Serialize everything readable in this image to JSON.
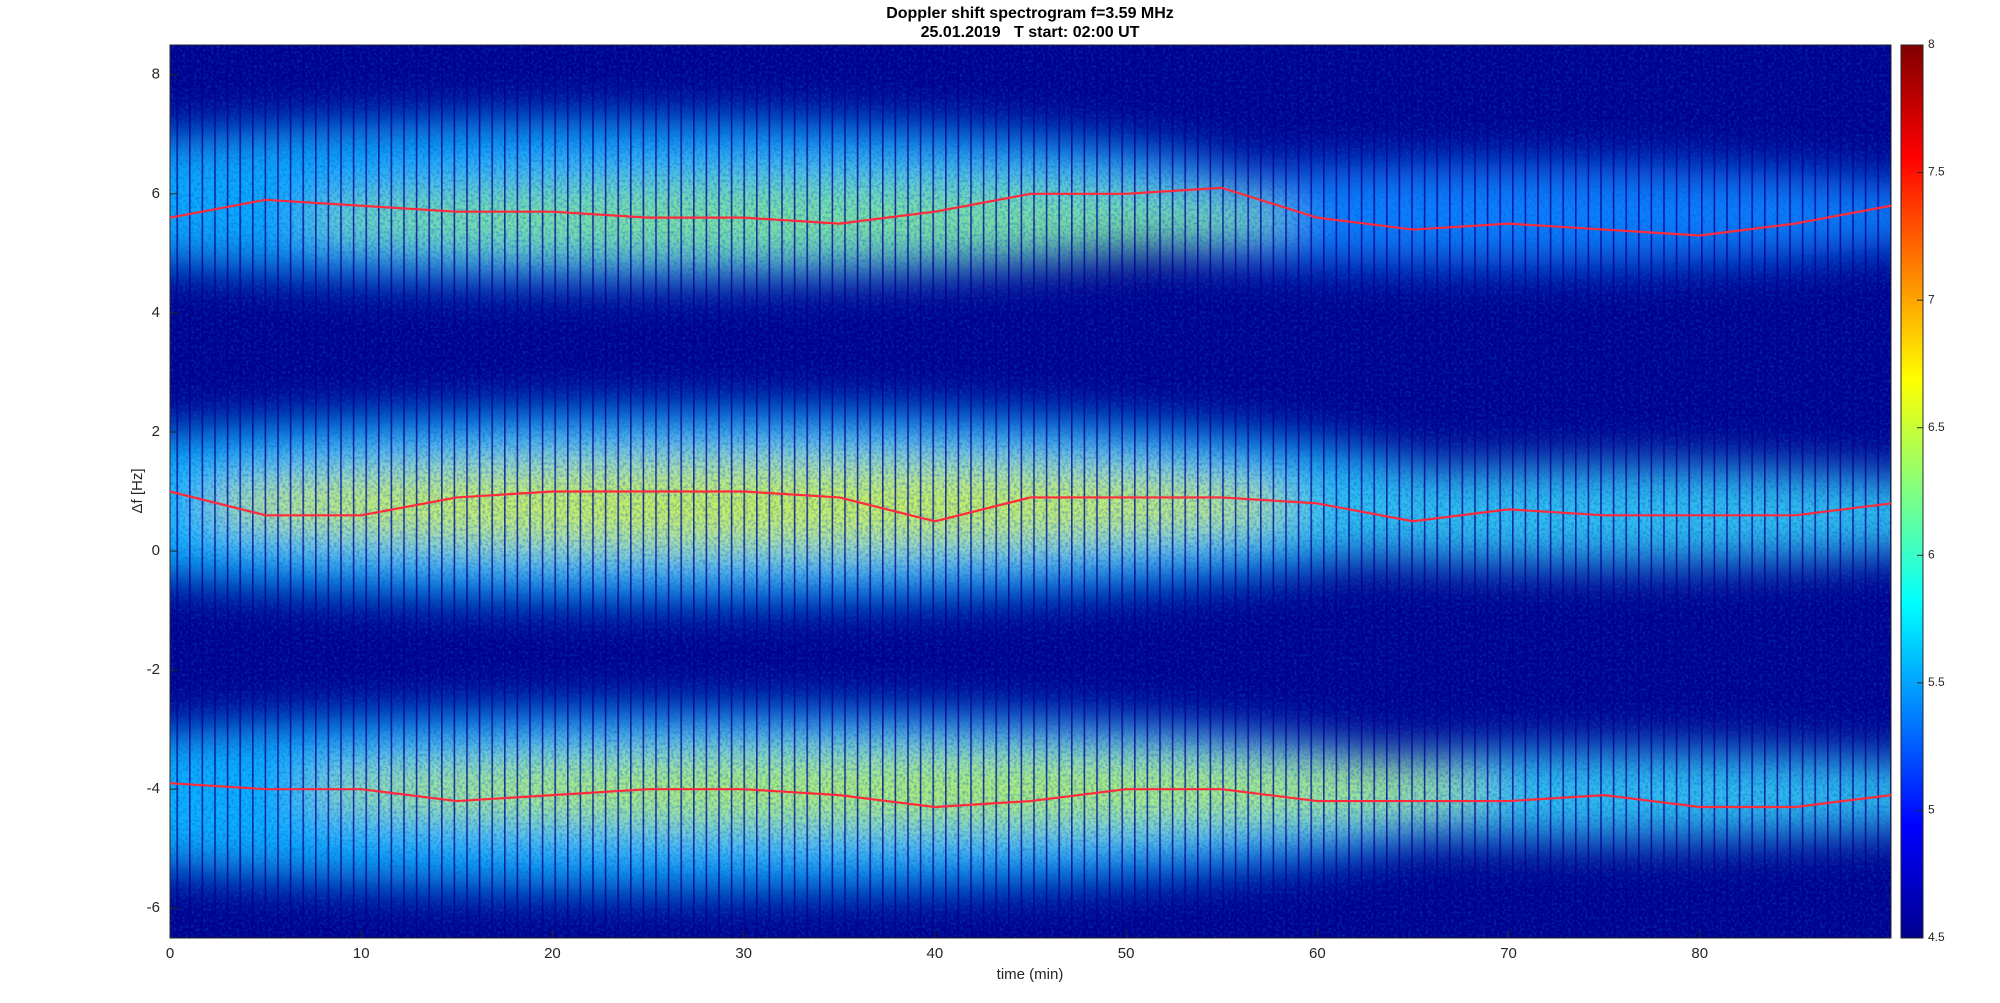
{
  "chart_data": {
    "type": "line",
    "title": "Doppler shift spectrogram f=3.59 MHz",
    "subtitle": "25.01.2019   T start: 02:00 UT",
    "x_label": "time (min)",
    "y_label": "Δf [Hz]",
    "x": [
      0,
      5,
      10,
      15,
      20,
      25,
      30,
      35,
      40,
      45,
      50,
      55,
      60,
      65,
      70,
      75,
      80,
      85,
      90
    ],
    "series": [
      {
        "color": "#ff2a3c",
        "values": [
          5.6,
          5.9,
          5.8,
          5.7,
          5.7,
          5.6,
          5.6,
          5.5,
          5.7,
          6.0,
          6.0,
          6.1,
          5.6,
          5.4,
          5.5,
          5.4,
          5.3,
          5.5,
          5.8
        ]
      },
      {
        "color": "#ff2a3c",
        "values": [
          1.0,
          0.6,
          0.6,
          0.9,
          1.0,
          1.0,
          1.0,
          0.9,
          0.5,
          0.9,
          0.9,
          0.9,
          0.8,
          0.5,
          0.7,
          0.6,
          0.6,
          0.6,
          0.8
        ]
      },
      {
        "color": "#ff2a3c",
        "values": [
          -3.9,
          -4.0,
          -4.0,
          -4.2,
          -4.1,
          -4.0,
          -4.0,
          -4.1,
          -4.3,
          -4.2,
          -4.0,
          -4.0,
          -4.2,
          -4.2,
          -4.2,
          -4.1,
          -4.3,
          -4.3,
          -4.1
        ]
      }
    ],
    "xlim": [
      0,
      90
    ],
    "xticks": [
      0,
      10,
      20,
      30,
      40,
      50,
      60,
      70,
      80
    ],
    "ylim": [
      -6.5,
      8.5
    ],
    "yticks": [
      -6,
      -4,
      -2,
      0,
      2,
      4,
      6,
      8
    ],
    "colormap": "jet",
    "clim": [
      4.5,
      8
    ],
    "cticks": [
      4.5,
      5,
      5.5,
      6,
      6.5,
      7,
      7.5,
      8
    ]
  }
}
